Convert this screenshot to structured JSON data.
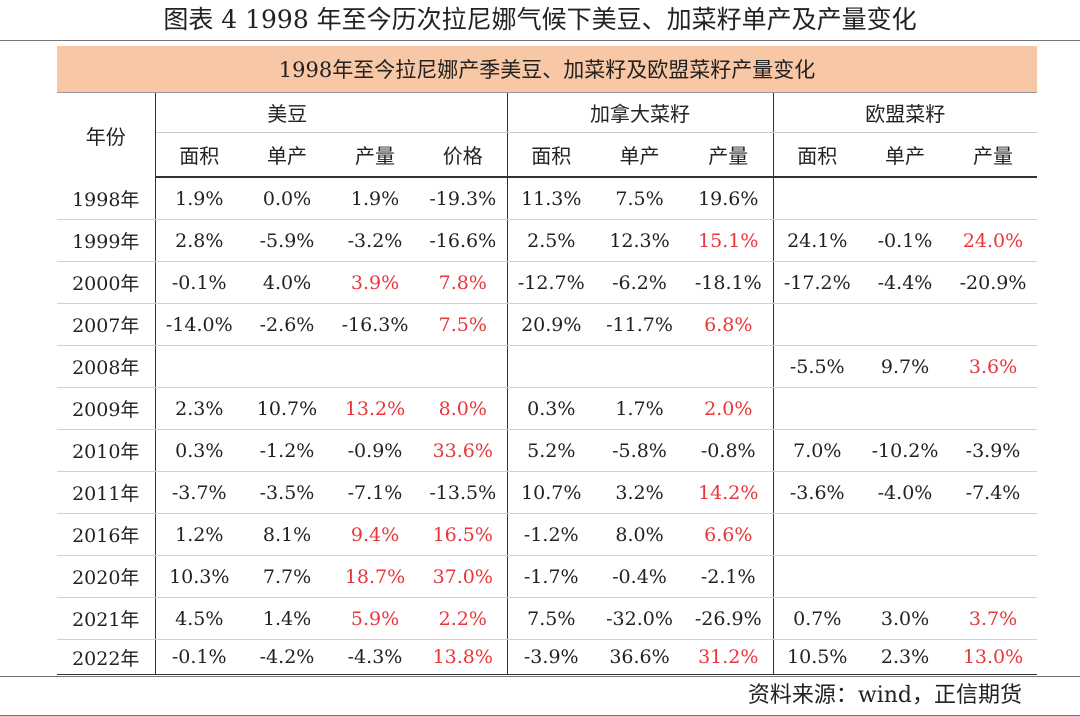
{
  "figure_title": "图表 4 1998 年至今历次拉尼娜气候下美豆、加菜籽单产及产量变化",
  "table_title": "1998年至今拉尼娜产季美豆、加菜籽及欧盟菜籽产量变化",
  "header": {
    "year": "年份",
    "groups": [
      "美豆",
      "加拿大菜籽",
      "欧盟菜籽"
    ],
    "sub": [
      "面积",
      "单产",
      "产量",
      "价格",
      "面积",
      "单产",
      "产量",
      "面积",
      "单产",
      "产量"
    ]
  },
  "colors": {
    "banner": "#f8c7a6",
    "highlight_red": "#e8363a"
  },
  "rows": [
    {
      "year": "1998年",
      "cells": [
        "1.9%",
        "0.0%",
        "1.9%",
        "-19.3%",
        "11.3%",
        "7.5%",
        "19.6%",
        "",
        "",
        ""
      ],
      "red": []
    },
    {
      "year": "1999年",
      "cells": [
        "2.8%",
        "-5.9%",
        "-3.2%",
        "-16.6%",
        "2.5%",
        "12.3%",
        "15.1%",
        "24.1%",
        "-0.1%",
        "24.0%"
      ],
      "red": [
        6,
        9
      ]
    },
    {
      "year": "2000年",
      "cells": [
        "-0.1%",
        "4.0%",
        "3.9%",
        "7.8%",
        "-12.7%",
        "-6.2%",
        "-18.1%",
        "-17.2%",
        "-4.4%",
        "-20.9%"
      ],
      "red": [
        2,
        3
      ]
    },
    {
      "year": "2007年",
      "cells": [
        "-14.0%",
        "-2.6%",
        "-16.3%",
        "7.5%",
        "20.9%",
        "-11.7%",
        "6.8%",
        "",
        "",
        ""
      ],
      "red": [
        3,
        6
      ]
    },
    {
      "year": "2008年",
      "cells": [
        "",
        "",
        "",
        "",
        "",
        "",
        "",
        "-5.5%",
        "9.7%",
        "3.6%"
      ],
      "red": [
        9
      ]
    },
    {
      "year": "2009年",
      "cells": [
        "2.3%",
        "10.7%",
        "13.2%",
        "8.0%",
        "0.3%",
        "1.7%",
        "2.0%",
        "",
        "",
        ""
      ],
      "red": [
        2,
        3,
        6
      ]
    },
    {
      "year": "2010年",
      "cells": [
        "0.3%",
        "-1.2%",
        "-0.9%",
        "33.6%",
        "5.2%",
        "-5.8%",
        "-0.8%",
        "7.0%",
        "-10.2%",
        "-3.9%"
      ],
      "red": [
        3
      ]
    },
    {
      "year": "2011年",
      "cells": [
        "-3.7%",
        "-3.5%",
        "-7.1%",
        "-13.5%",
        "10.7%",
        "3.2%",
        "14.2%",
        "-3.6%",
        "-4.0%",
        "-7.4%"
      ],
      "red": [
        6
      ]
    },
    {
      "year": "2016年",
      "cells": [
        "1.2%",
        "8.1%",
        "9.4%",
        "16.5%",
        "-1.2%",
        "8.0%",
        "6.6%",
        "",
        "",
        ""
      ],
      "red": [
        2,
        3,
        6
      ]
    },
    {
      "year": "2020年",
      "cells": [
        "10.3%",
        "7.7%",
        "18.7%",
        "37.0%",
        "-1.7%",
        "-0.4%",
        "-2.1%",
        "",
        "",
        ""
      ],
      "red": [
        2,
        3
      ]
    },
    {
      "year": "2021年",
      "cells": [
        "4.5%",
        "1.4%",
        "5.9%",
        "2.2%",
        "7.5%",
        "-32.0%",
        "-26.9%",
        "0.7%",
        "3.0%",
        "3.7%"
      ],
      "red": [
        2,
        3,
        9
      ]
    },
    {
      "year": "2022年",
      "cells": [
        "-0.1%",
        "-4.2%",
        "-4.3%",
        "13.8%",
        "-3.9%",
        "36.6%",
        "31.2%",
        "10.5%",
        "2.3%",
        "13.0%"
      ],
      "red": [
        3,
        6,
        9
      ]
    }
  ],
  "source": "资料来源：wind，正信期货"
}
